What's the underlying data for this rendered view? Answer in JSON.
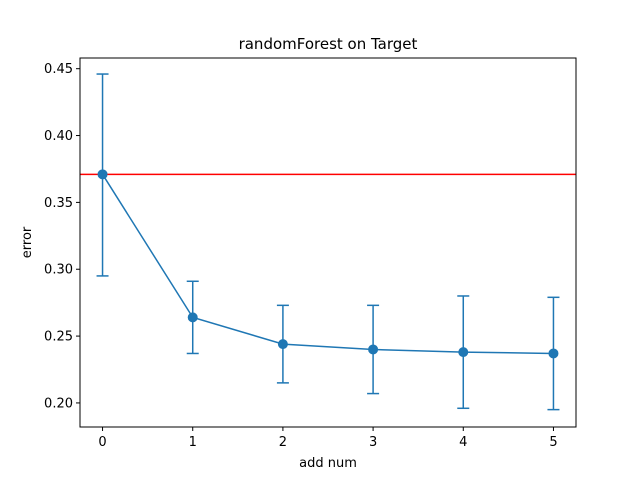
{
  "chart_data": {
    "type": "line",
    "title": "randomForest on Target",
    "xlabel": "add num",
    "ylabel": "error",
    "xlim": [
      -0.25,
      5.25
    ],
    "ylim": [
      0.182,
      0.458
    ],
    "xticks": [
      0,
      1,
      2,
      3,
      4,
      5
    ],
    "yticks": [
      0.2,
      0.25,
      0.3,
      0.35,
      0.4,
      0.45
    ],
    "xtick_labels": [
      "0",
      "1",
      "2",
      "3",
      "4",
      "5"
    ],
    "ytick_labels": [
      "0.20",
      "0.25",
      "0.30",
      "0.35",
      "0.40",
      "0.45"
    ],
    "grid": false,
    "series": [
      {
        "x": [
          0,
          1,
          2,
          3,
          4,
          5
        ],
        "values": [
          0.371,
          0.264,
          0.244,
          0.24,
          0.238,
          0.237
        ],
        "err_low": [
          0.295,
          0.237,
          0.215,
          0.207,
          0.196,
          0.195
        ],
        "err_high": [
          0.446,
          0.291,
          0.273,
          0.273,
          0.28,
          0.279
        ],
        "color": "#1f77b4"
      }
    ],
    "hline": {
      "y": 0.371,
      "color": "#ff0000"
    }
  }
}
